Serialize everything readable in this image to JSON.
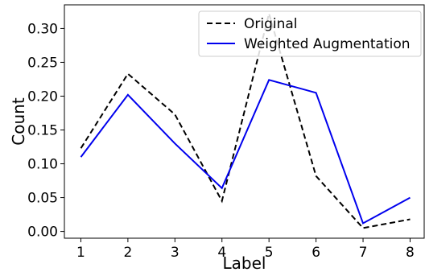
{
  "chart_data": {
    "type": "line",
    "title": "",
    "xlabel": "Label",
    "ylabel": "Count",
    "x": [
      1,
      2,
      3,
      4,
      5,
      6,
      7,
      8
    ],
    "xticks": [
      "1",
      "2",
      "3",
      "4",
      "5",
      "6",
      "7",
      "8"
    ],
    "xlim": [
      0.65,
      8.3
    ],
    "ylim": [
      -0.01,
      0.335
    ],
    "yticks": [
      0.0,
      0.05,
      0.1,
      0.15,
      0.2,
      0.25,
      0.3
    ],
    "ytick_labels": [
      "0.00",
      "0.05",
      "0.10",
      "0.15",
      "0.20",
      "0.25",
      "0.30"
    ],
    "grid": false,
    "legend_position": "top-right",
    "series": [
      {
        "name": "Original",
        "color": "#000000",
        "style": "dashed",
        "values": [
          0.123,
          0.233,
          0.173,
          0.045,
          0.322,
          0.082,
          0.005,
          0.018
        ]
      },
      {
        "name": "Weighted Augmentation",
        "color": "#0000ee",
        "style": "solid",
        "values": [
          0.11,
          0.202,
          0.13,
          0.064,
          0.224,
          0.205,
          0.012,
          0.05
        ]
      }
    ]
  }
}
